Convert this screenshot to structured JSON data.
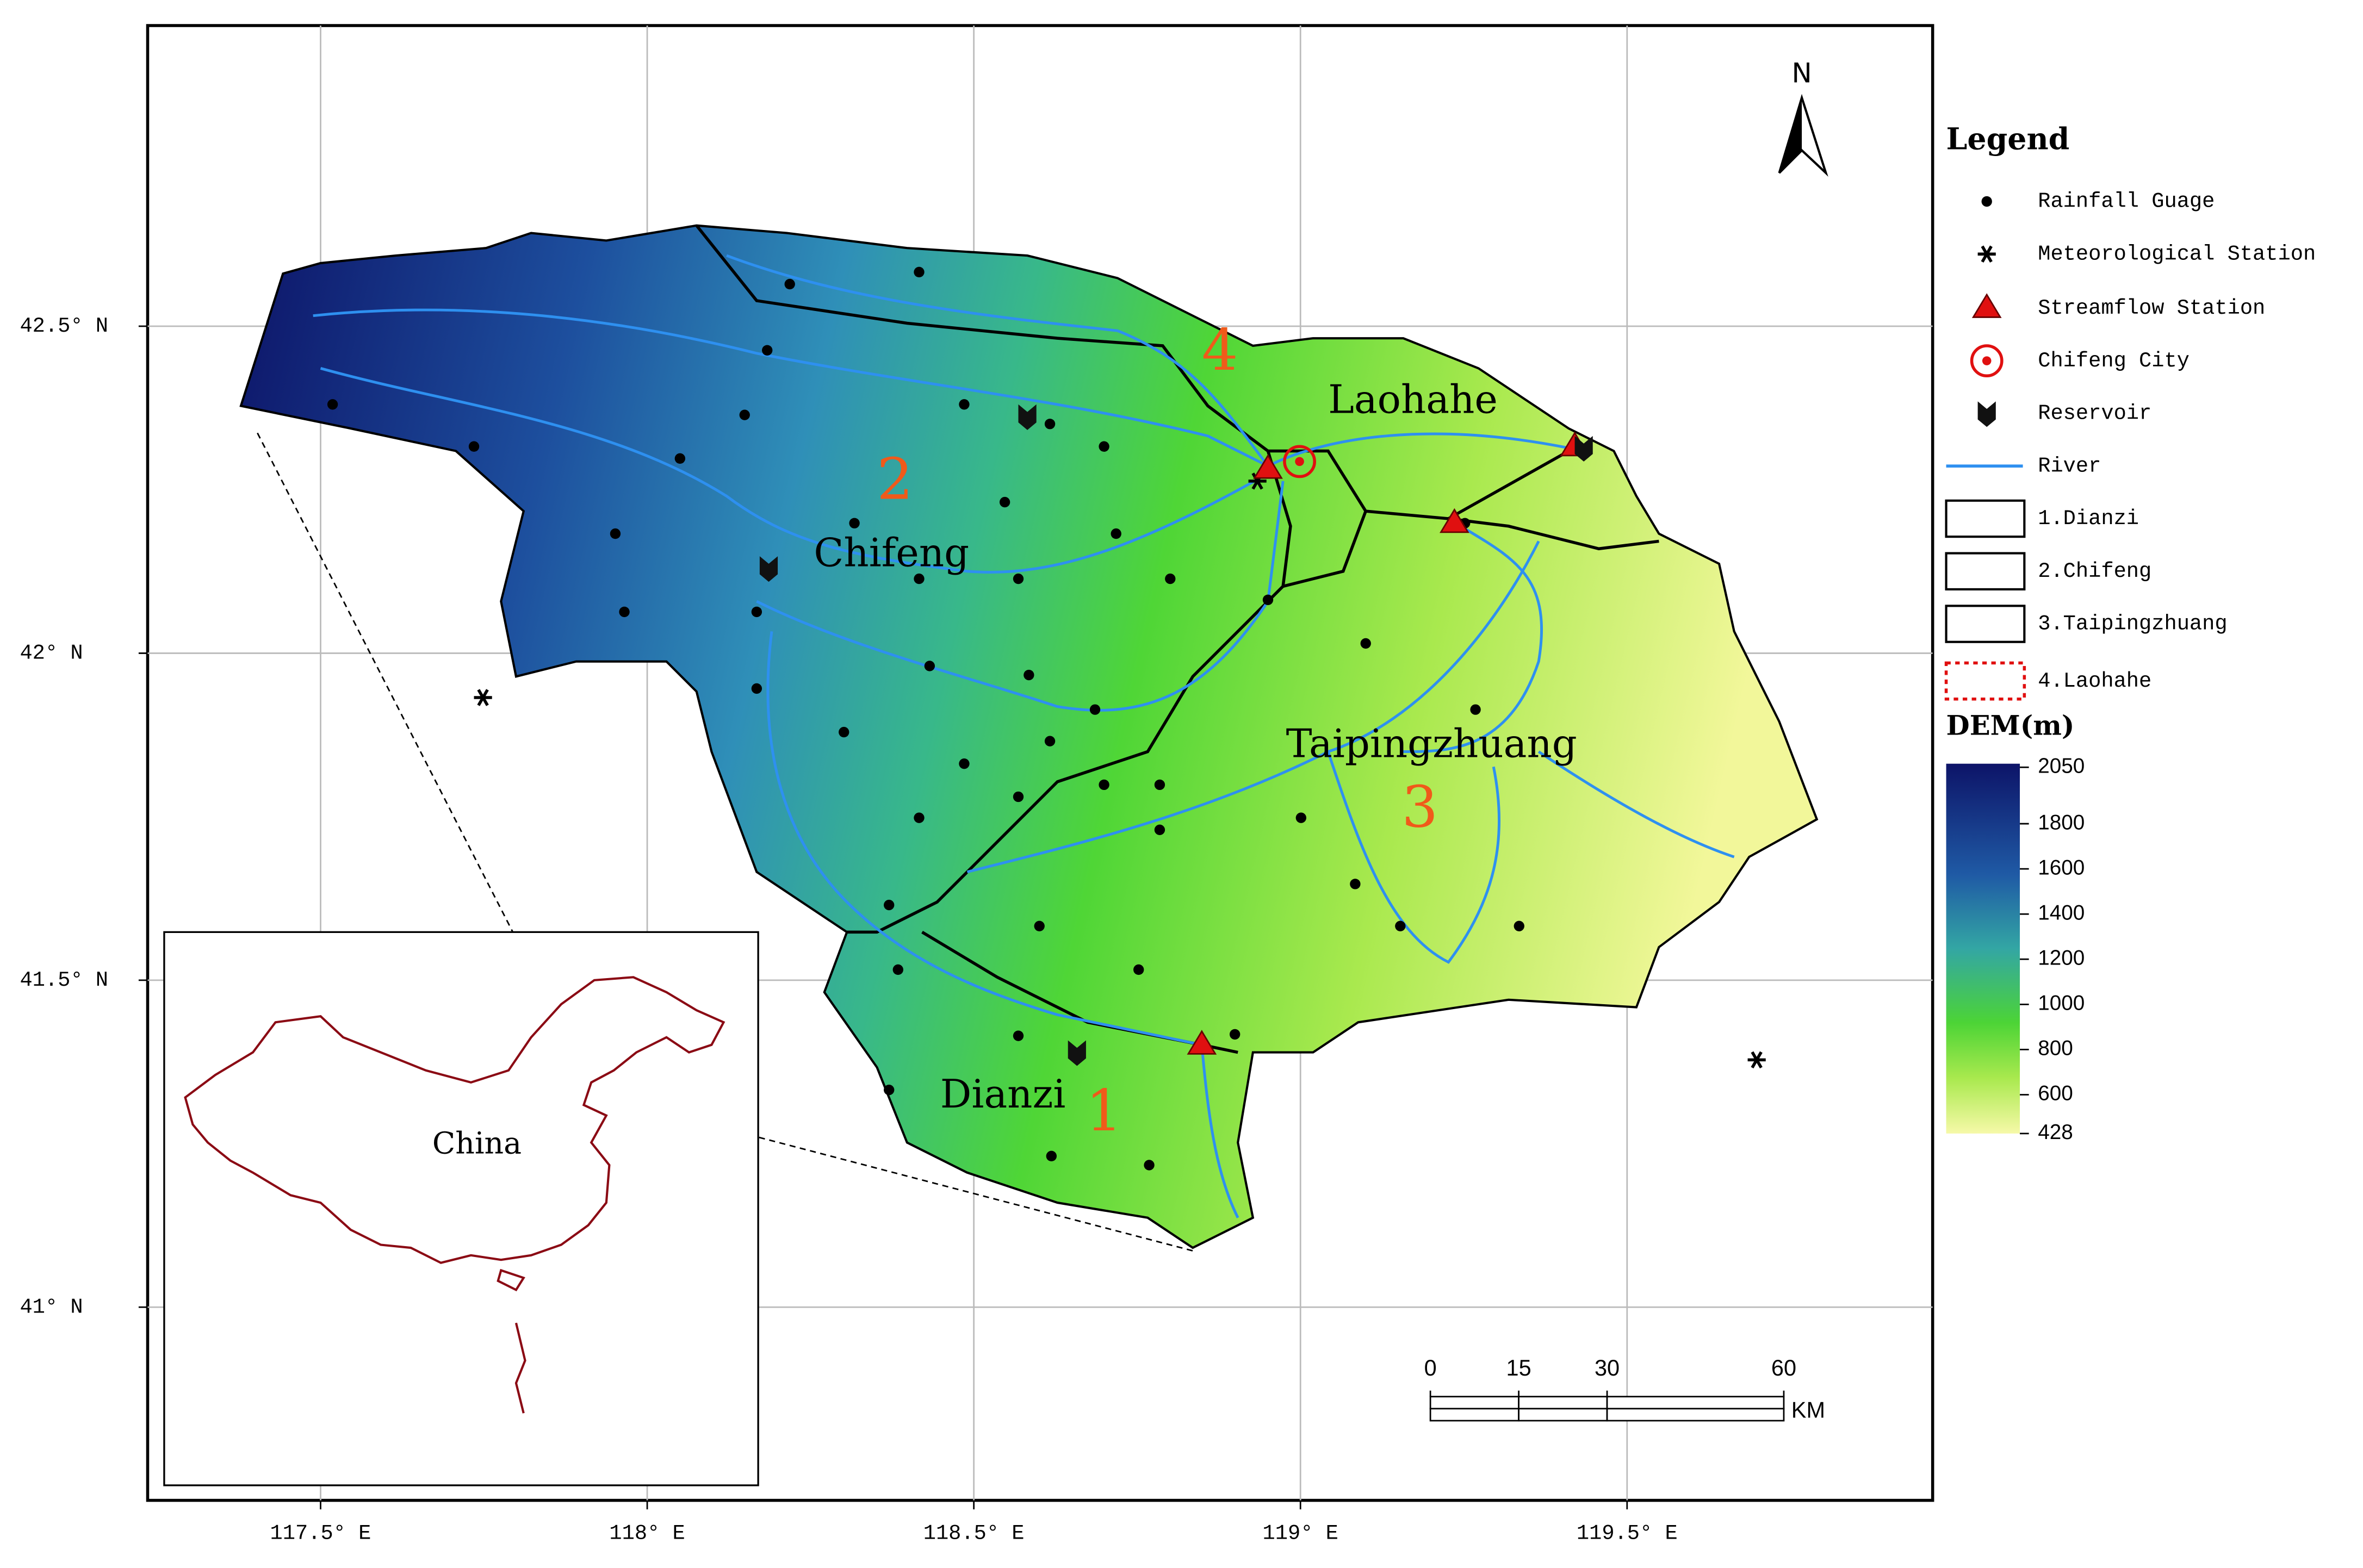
{
  "map": {
    "lon_ticks": [
      {
        "value": 117.5,
        "label": "117.5°  E"
      },
      {
        "value": 118,
        "label": "118°  E"
      },
      {
        "value": 118.5,
        "label": "118.5°  E"
      },
      {
        "value": 119,
        "label": "119°  E"
      },
      {
        "value": 119.5,
        "label": "119.5°  E"
      }
    ],
    "lat_ticks": [
      {
        "value": 42.5,
        "label": "42.5°  N"
      },
      {
        "value": 42,
        "label": "42°  N"
      },
      {
        "value": 41.5,
        "label": "41.5°  N"
      },
      {
        "value": 41,
        "label": "41°  N"
      }
    ],
    "basin_labels": [
      "Dianzi",
      "Chifeng",
      "Taipingzhuang",
      "Laohahe"
    ],
    "basin_numbers": [
      "1",
      "2",
      "3",
      "4"
    ],
    "inset_label": "China",
    "north": "N"
  },
  "legend": {
    "title": "Legend",
    "items": [
      "Rainfall Guage",
      "Meteorological Station",
      "Streamflow Station",
      "Chifeng City",
      "Reservoir",
      "River",
      "1.Dianzi",
      "2.Chifeng",
      "3.Taipingzhuang",
      "4.Laohahe"
    ]
  },
  "dem": {
    "title": "DEM(m)",
    "ticks": [
      2050,
      1800,
      1600,
      1400,
      1200,
      1000,
      800,
      600,
      428
    ]
  },
  "scale_bar": {
    "ticks": [
      0,
      15,
      30,
      60
    ],
    "unit": "KM"
  }
}
